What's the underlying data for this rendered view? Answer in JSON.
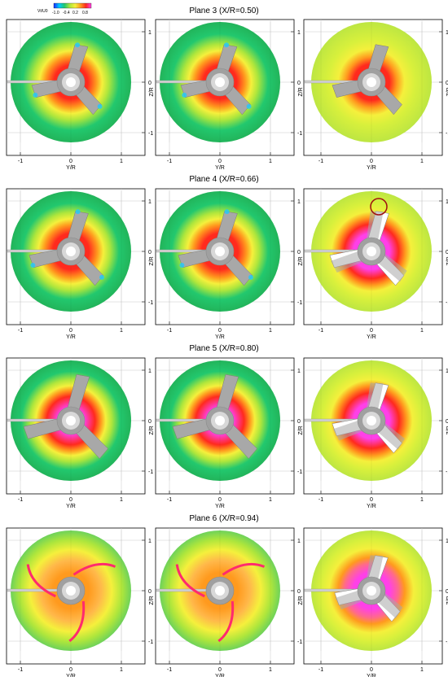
{
  "colorbar": {
    "label": "Vt/U0",
    "ticks": [
      "-1.0",
      "-0.4",
      "0.2",
      "0.8"
    ],
    "colors": [
      "#1a2aff",
      "#00c8ff",
      "#22c86e",
      "#aee63c",
      "#f5f03c",
      "#ff9a1e",
      "#ff2a1e",
      "#ff40e8"
    ]
  },
  "axes": {
    "x_label": "Y/R",
    "y_label": "Z/R",
    "x_ticks": [
      "-1",
      "0",
      "1"
    ],
    "y_ticks": [
      "1",
      "0",
      "-1"
    ]
  },
  "rows": [
    {
      "title": "Plane 3 (X/R=0.50)",
      "panels": [
        {
          "stops": [
            [
              "#ff2a1e",
              0.28
            ],
            [
              "#ff9a1e",
              0.42
            ],
            [
              "#f5f03c",
              0.52
            ],
            [
              "#aee63c",
              0.63
            ],
            [
              "#22c86e",
              0.8
            ],
            [
              "#22b45a",
              1
            ]
          ],
          "blade_color": "#a8a8a8",
          "blade_len": 0.75,
          "white_blades": false,
          "tips_blue": true,
          "circle": false
        },
        {
          "stops": [
            [
              "#ff2a1e",
              0.28
            ],
            [
              "#ff9a1e",
              0.42
            ],
            [
              "#f5f03c",
              0.52
            ],
            [
              "#aee63c",
              0.63
            ],
            [
              "#22c86e",
              0.8
            ],
            [
              "#22b45a",
              1
            ]
          ],
          "blade_color": "#a8a8a8",
          "blade_len": 0.75,
          "white_blades": false,
          "tips_blue": true,
          "circle": false
        },
        {
          "stops": [
            [
              "#ff2a1e",
              0.3
            ],
            [
              "#ff9a1e",
              0.42
            ],
            [
              "#f5f03c",
              0.55
            ],
            [
              "#d8f03c",
              0.72
            ],
            [
              "#bde642",
              1
            ]
          ],
          "blade_color": "#a8a8a8",
          "blade_len": 0.75,
          "white_blades": false,
          "tips_blue": false,
          "circle": false
        }
      ]
    },
    {
      "title": "Plane 4 (X/R=0.66)",
      "panels": [
        {
          "stops": [
            [
              "#ff2a1e",
              0.3
            ],
            [
              "#ff9a1e",
              0.44
            ],
            [
              "#f5f03c",
              0.54
            ],
            [
              "#aee63c",
              0.65
            ],
            [
              "#22c86e",
              0.8
            ],
            [
              "#22b45a",
              1
            ]
          ],
          "blade_color": "#a8a8a8",
          "blade_len": 0.8,
          "white_blades": false,
          "tips_blue": true,
          "circle": false
        },
        {
          "stops": [
            [
              "#ff2a1e",
              0.3
            ],
            [
              "#ff9a1e",
              0.44
            ],
            [
              "#f5f03c",
              0.54
            ],
            [
              "#aee63c",
              0.65
            ],
            [
              "#22c86e",
              0.8
            ],
            [
              "#22b45a",
              1
            ]
          ],
          "blade_color": "#a8a8a8",
          "blade_len": 0.8,
          "white_blades": false,
          "tips_blue": true,
          "circle": false
        },
        {
          "stops": [
            [
              "#ff40e8",
              0.3
            ],
            [
              "#ff2a1e",
              0.45
            ],
            [
              "#ff9a1e",
              0.56
            ],
            [
              "#f5f03c",
              0.66
            ],
            [
              "#d8f03c",
              0.8
            ],
            [
              "#bde642",
              1
            ]
          ],
          "blade_color": "#a8a8a8",
          "blade_len": 0.8,
          "white_blades": true,
          "tips_blue": false,
          "circle": true
        }
      ]
    },
    {
      "title": "Plane 5 (X/R=0.80)",
      "panels": [
        {
          "stops": [
            [
              "#ff40e8",
              0.22
            ],
            [
              "#ff2a1e",
              0.4
            ],
            [
              "#ff9a1e",
              0.5
            ],
            [
              "#f5f03c",
              0.58
            ],
            [
              "#aee63c",
              0.68
            ],
            [
              "#22c86e",
              0.82
            ],
            [
              "#22b45a",
              1
            ]
          ],
          "blade_color": "#a8a8a8",
          "blade_len": 0.92,
          "white_blades": false,
          "tips_blue": false,
          "circle": false
        },
        {
          "stops": [
            [
              "#ff40e8",
              0.22
            ],
            [
              "#ff2a1e",
              0.4
            ],
            [
              "#ff9a1e",
              0.5
            ],
            [
              "#f5f03c",
              0.58
            ],
            [
              "#aee63c",
              0.68
            ],
            [
              "#22c86e",
              0.82
            ],
            [
              "#22b45a",
              1
            ]
          ],
          "blade_color": "#a8a8a8",
          "blade_len": 0.92,
          "white_blades": false,
          "tips_blue": false,
          "circle": false
        },
        {
          "stops": [
            [
              "#ff40e8",
              0.3
            ],
            [
              "#ff2a1e",
              0.46
            ],
            [
              "#ff9a1e",
              0.58
            ],
            [
              "#f5f03c",
              0.68
            ],
            [
              "#d8f03c",
              0.82
            ],
            [
              "#bde642",
              1
            ]
          ],
          "blade_color": "#ffffff",
          "blade_len": 0.75,
          "white_blades": true,
          "tips_blue": false,
          "circle": false
        }
      ]
    },
    {
      "title": "Plane 6 (X/R=0.94)",
      "panels": [
        {
          "stops": [
            [
              "#ff9a1e",
              0.3
            ],
            [
              "#ffb84a",
              0.5
            ],
            [
              "#f5f03c",
              0.68
            ],
            [
              "#aee63c",
              0.85
            ],
            [
              "#6ed25a",
              1
            ]
          ],
          "blade_color": "#a8a8a8",
          "blade_len": 0.0,
          "white_blades": false,
          "tips_blue": false,
          "circle": false
        },
        {
          "stops": [
            [
              "#ff9a1e",
              0.3
            ],
            [
              "#ffb84a",
              0.5
            ],
            [
              "#f5f03c",
              0.68
            ],
            [
              "#aee63c",
              0.85
            ],
            [
              "#6ed25a",
              1
            ]
          ],
          "blade_color": "#a8a8a8",
          "blade_len": 0.0,
          "white_blades": false,
          "tips_blue": false,
          "circle": false
        },
        {
          "stops": [
            [
              "#ff40e8",
              0.3
            ],
            [
              "#ff6a8a",
              0.45
            ],
            [
              "#ff9a1e",
              0.55
            ],
            [
              "#f5f03c",
              0.7
            ],
            [
              "#d8f03c",
              0.85
            ],
            [
              "#bde642",
              1
            ]
          ],
          "blade_color": "#ffffff",
          "blade_len": 0.7,
          "white_blades": true,
          "tips_blue": false,
          "circle": false
        }
      ]
    }
  ]
}
